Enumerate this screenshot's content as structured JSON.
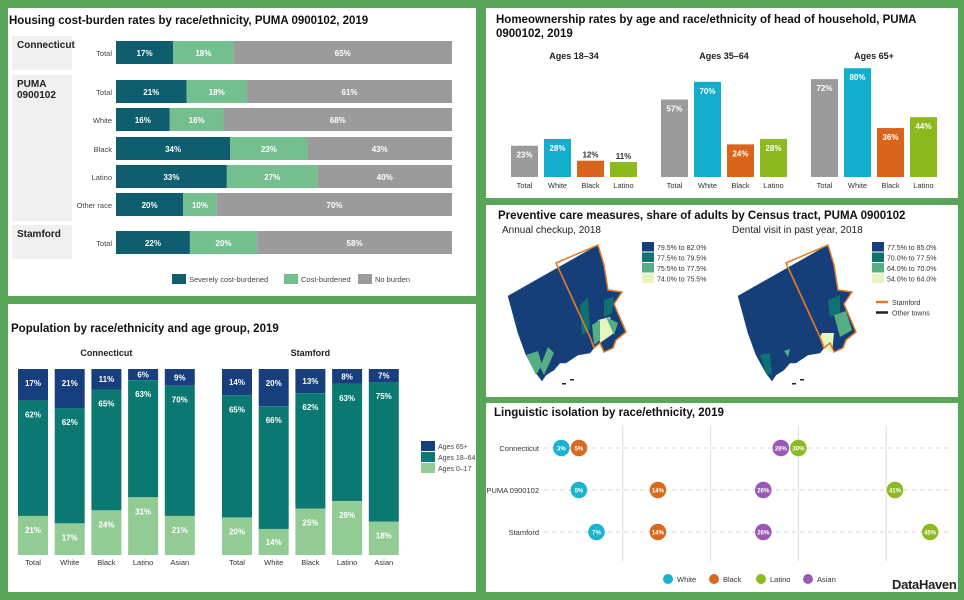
{
  "colors": {
    "frame": "#5ba55b"
  },
  "housing": {
    "title": "Housing cost-burden rates by race/ethnicity, PUMA 0900102, 2019",
    "legend": [
      {
        "label": "Severely cost-burdened",
        "color": "#0e5e6f"
      },
      {
        "label": "Cost-burdened",
        "color": "#74bf8e"
      },
      {
        "label": "No burden",
        "color": "#9b9b9b"
      }
    ]
  },
  "homeownership": {
    "title_line1": "Homeownership rates by age and race/ethnicity of head of household, PUMA",
    "title_line2": "0900102, 2019"
  },
  "population": {
    "title": "Population by race/ethnicity and age group, 2019"
  },
  "preventive": {
    "title": "Preventive care measures, share of adults by Census tract, PUMA 0900102",
    "maps": [
      {
        "title": "Annual checkup, 2018",
        "legend": [
          {
            "label": "79.5% to 82.0%",
            "color": "#163e78"
          },
          {
            "label": "77.5% to 79.5%",
            "color": "#0d7270"
          },
          {
            "label": "75.5% to 77.5%",
            "color": "#56ae84"
          },
          {
            "label": "74.0% to 75.5%",
            "color": "#e6f4c0"
          }
        ]
      },
      {
        "title": "Dental visit in past year, 2018",
        "legend": [
          {
            "label": "77.5% to 85.0%",
            "color": "#163e78"
          },
          {
            "label": "70.0% to 77.5%",
            "color": "#0d7270"
          },
          {
            "label": "64.0% to 70.0%",
            "color": "#56ae84"
          },
          {
            "label": "54.0% to 64.0%",
            "color": "#e6f4c0"
          }
        ]
      }
    ],
    "boundary_legend": [
      {
        "label": "Stamford",
        "color": "#e07b2a"
      },
      {
        "label": "Other towns",
        "color": "#222222"
      }
    ]
  },
  "linguistic": {
    "title": "Linguistic isolation by race/ethnicity, 2019"
  },
  "brand": "DataHaven",
  "chart_data": [
    {
      "type": "bar",
      "orientation": "horizontal-stacked",
      "title": "Housing cost-burden rates by race/ethnicity, PUMA 0900102, 2019",
      "groups": [
        {
          "name": "Connecticut",
          "rows": [
            {
              "category": "Total",
              "values": [
                17,
                18,
                65
              ]
            }
          ]
        },
        {
          "name": "PUMA 0900102",
          "rows": [
            {
              "category": "Total",
              "values": [
                21,
                18,
                61
              ]
            },
            {
              "category": "White",
              "values": [
                16,
                16,
                68
              ]
            },
            {
              "category": "Black",
              "values": [
                34,
                23,
                43
              ]
            },
            {
              "category": "Latino",
              "values": [
                33,
                27,
                40
              ]
            },
            {
              "category": "Other race",
              "values": [
                20,
                10,
                70
              ]
            }
          ]
        },
        {
          "name": "Stamford",
          "rows": [
            {
              "category": "Total",
              "values": [
                22,
                20,
                58
              ]
            }
          ]
        }
      ],
      "series": [
        "Severely cost-burdened",
        "Cost-burdened",
        "No burden"
      ],
      "xlim": [
        0,
        100
      ],
      "legend_position": "bottom"
    },
    {
      "type": "bar",
      "title": "Homeownership rates by age and race/ethnicity of head of household, PUMA 0900102, 2019",
      "categories": [
        "Total",
        "White",
        "Black",
        "Latino"
      ],
      "colors": [
        "#9b9b9b",
        "#13aecb",
        "#d9651c",
        "#8db81e"
      ],
      "panels": [
        {
          "name": "Ages 18–34",
          "values": [
            23,
            28,
            12,
            11
          ]
        },
        {
          "name": "Ages 35–64",
          "values": [
            57,
            70,
            24,
            28
          ]
        },
        {
          "name": "Ages 65+",
          "values": [
            72,
            80,
            36,
            44
          ]
        }
      ],
      "ylim": [
        0,
        100
      ]
    },
    {
      "type": "bar",
      "orientation": "vertical-stacked",
      "title": "Population by race/ethnicity and age group, 2019",
      "categories": [
        "Total",
        "White",
        "Black",
        "Latino",
        "Asian"
      ],
      "series": [
        {
          "name": "Ages 65+",
          "color": "#173f7d"
        },
        {
          "name": "Ages 18–64",
          "color": "#0b7872"
        },
        {
          "name": "Ages 0–17",
          "color": "#93cb95"
        }
      ],
      "panels": [
        {
          "name": "Connecticut",
          "values": [
            [
              17,
              62,
              21
            ],
            [
              21,
              62,
              17
            ],
            [
              11,
              65,
              24
            ],
            [
              6,
              63,
              31
            ],
            [
              9,
              70,
              21
            ]
          ]
        },
        {
          "name": "Stamford",
          "values": [
            [
              14,
              65,
              20
            ],
            [
              20,
              66,
              14
            ],
            [
              13,
              62,
              25
            ],
            [
              8,
              63,
              29
            ],
            [
              7,
              75,
              18
            ]
          ]
        }
      ],
      "legend_position": "right"
    },
    {
      "type": "scatter",
      "subtype": "dot-plot",
      "title": "Linguistic isolation by race/ethnicity, 2019",
      "categories": [
        "Connecticut",
        "PUMA 0900102",
        "Stamford"
      ],
      "series": [
        {
          "name": "White",
          "color": "#1ab4cf",
          "values": [
            3,
            5,
            7
          ]
        },
        {
          "name": "Black",
          "color": "#d9691f",
          "values": [
            5,
            14,
            14
          ]
        },
        {
          "name": "Latino",
          "color": "#8dba23",
          "values": [
            30,
            41,
            45
          ]
        },
        {
          "name": "Asian",
          "color": "#9b59b6",
          "values": [
            28,
            26,
            26
          ]
        }
      ],
      "xlim": [
        0,
        50
      ],
      "grid": true,
      "legend_position": "bottom"
    }
  ]
}
